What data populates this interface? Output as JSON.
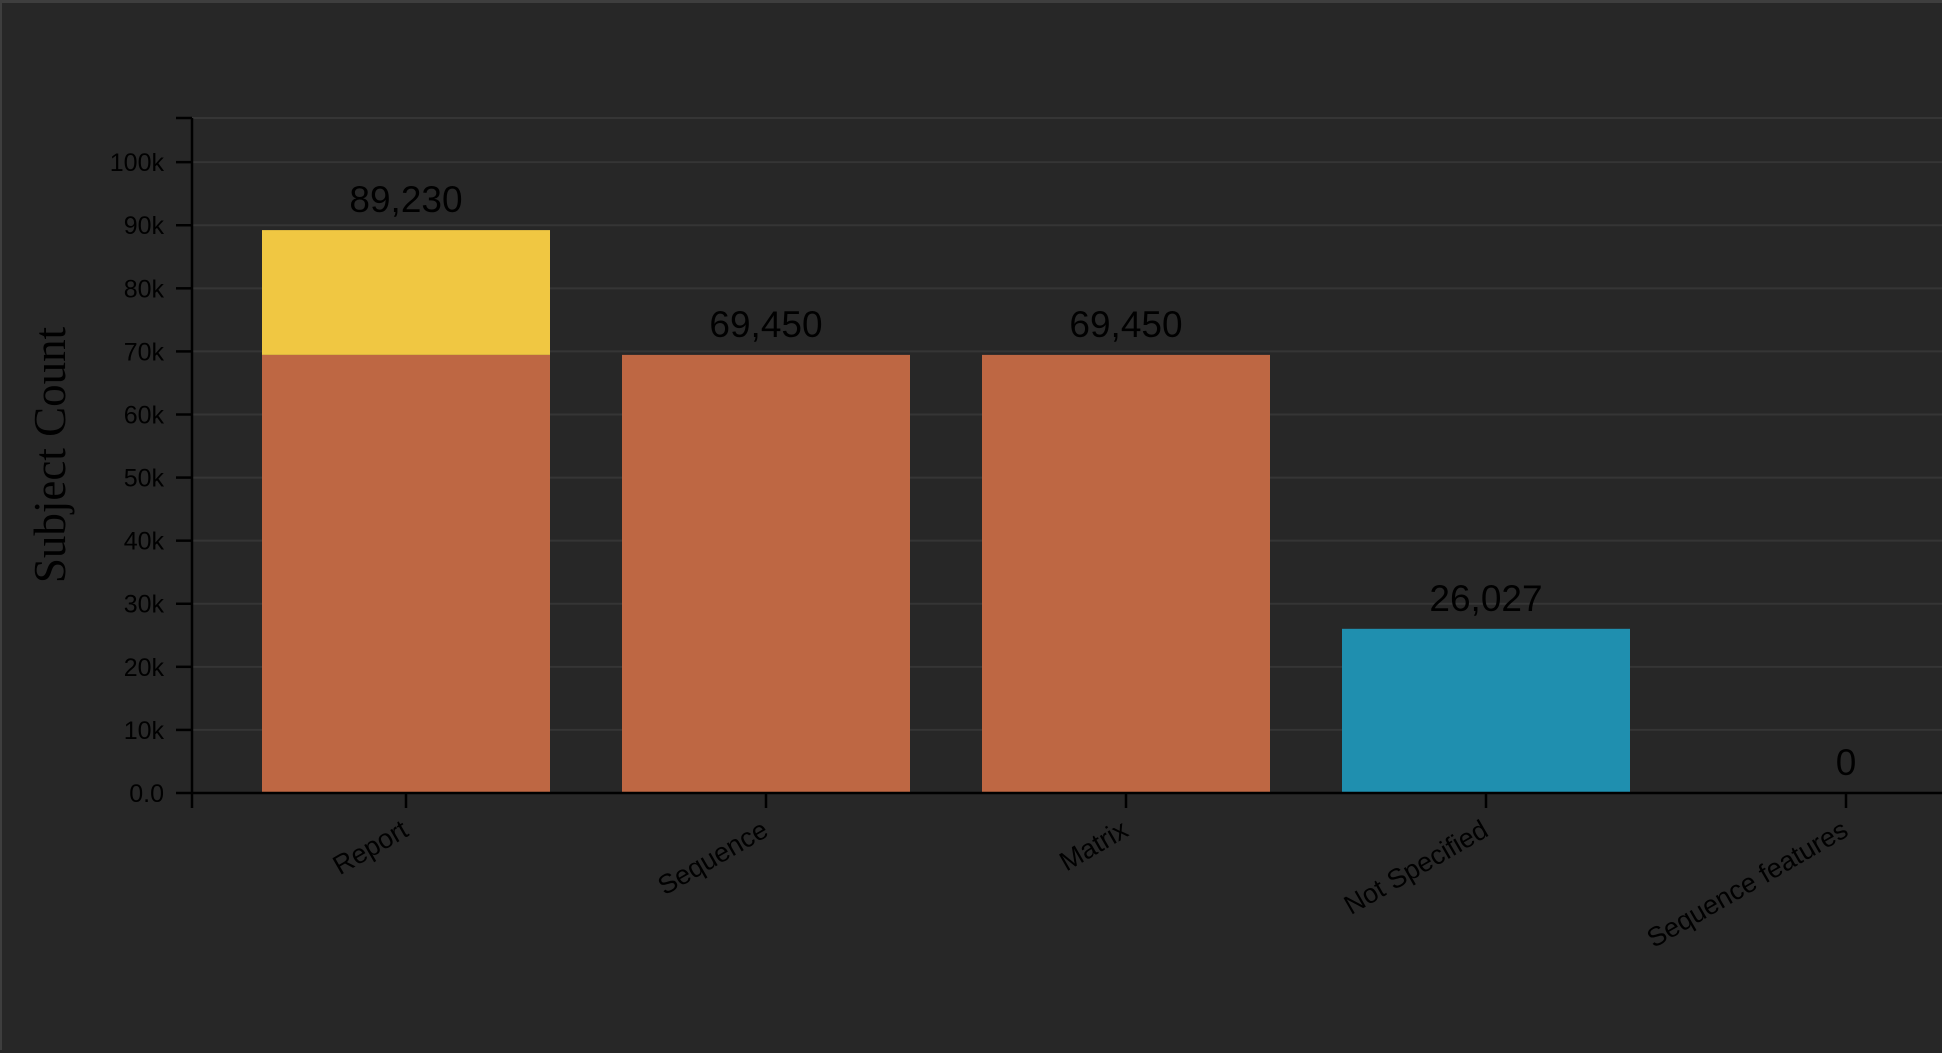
{
  "chart_data": {
    "type": "bar",
    "stacked": true,
    "ylabel": "Subject Count",
    "xlabel": "",
    "ylim": [
      0,
      107000
    ],
    "yticks": [
      0,
      10000,
      20000,
      30000,
      40000,
      50000,
      60000,
      70000,
      80000,
      90000,
      100000
    ],
    "ytick_labels": [
      "0.0",
      "10k",
      "20k",
      "30k",
      "40k",
      "50k",
      "60k",
      "70k",
      "80k",
      "90k",
      "100k"
    ],
    "grid": true,
    "categories": [
      "Report",
      "Sequence",
      "Matrix",
      "Not Specified",
      "Sequence features"
    ],
    "totals": [
      89230,
      69450,
      69450,
      26027,
      0
    ],
    "total_labels": [
      "89,230",
      "69,450",
      "69,450",
      "26,027",
      "0"
    ],
    "stacks": [
      [
        {
          "value": 69450,
          "color": "#be6743"
        },
        {
          "value": 19780,
          "color": "#f0c742"
        }
      ],
      [
        {
          "value": 69450,
          "color": "#be6743"
        }
      ],
      [
        {
          "value": 69450,
          "color": "#be6743"
        }
      ],
      [
        {
          "value": 26027,
          "color": "#1f8faf"
        }
      ],
      []
    ],
    "colors": {
      "background": "#272727",
      "grid": "#353535",
      "axis": "#000000"
    }
  }
}
